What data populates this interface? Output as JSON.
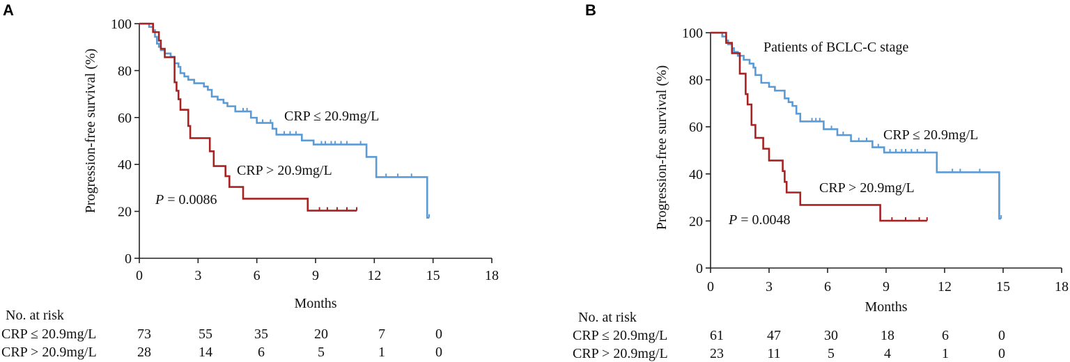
{
  "colors": {
    "low_crp": "#5b9bd5",
    "high_crp": "#a82222",
    "axis": "#222222"
  },
  "chart_data": [
    {
      "panel": "A",
      "type": "line",
      "subtype": "kaplan-meier",
      "title": "",
      "xlabel": "Months",
      "ylabel": "Progression-free survival (%)",
      "xlim": [
        0,
        18
      ],
      "ylim": [
        0,
        100
      ],
      "xticks": [
        "0",
        "3",
        "6",
        "9",
        "12",
        "15",
        "18"
      ],
      "yticks": [
        "0",
        "20",
        "40",
        "60",
        "80",
        "100"
      ],
      "pvalue_label": "P",
      "pvalue_text": " = 0.0086",
      "series": [
        {
          "name": "CRP ≤ 20.9mg/L",
          "color": "#5b9bd5",
          "steps": [
            [
              0,
              100
            ],
            [
              0.5,
              98.6
            ],
            [
              0.7,
              97.2
            ],
            [
              0.8,
              94.4
            ],
            [
              0.9,
              91.5
            ],
            [
              1.0,
              90.1
            ],
            [
              1.1,
              88.7
            ],
            [
              1.3,
              87.3
            ],
            [
              1.6,
              85.9
            ],
            [
              1.8,
              83.1
            ],
            [
              2.0,
              81.6
            ],
            [
              2.1,
              78.9
            ],
            [
              2.3,
              77.5
            ],
            [
              2.5,
              76.1
            ],
            [
              2.8,
              74.6
            ],
            [
              3.3,
              73.2
            ],
            [
              3.5,
              71.8
            ],
            [
              3.7,
              68.9
            ],
            [
              4.0,
              67.6
            ],
            [
              4.3,
              66.2
            ],
            [
              4.5,
              64.8
            ],
            [
              4.9,
              62.6
            ],
            [
              5.7,
              59.9
            ],
            [
              6.0,
              57.7
            ],
            [
              6.8,
              55.2
            ],
            [
              7.0,
              52.7
            ],
            [
              8.3,
              50.2
            ],
            [
              8.9,
              48.5
            ],
            [
              11.6,
              43.2
            ],
            [
              12.1,
              34.6
            ],
            [
              14.7,
              17.3
            ]
          ],
          "end": 14.8,
          "censored": [
            [
              5.3,
              62.6
            ],
            [
              5.5,
              62.6
            ],
            [
              6.3,
              57.7
            ],
            [
              6.7,
              57.7
            ],
            [
              7.4,
              52.7
            ],
            [
              7.7,
              52.7
            ],
            [
              8.0,
              52.7
            ],
            [
              9.3,
              48.5
            ],
            [
              9.5,
              48.5
            ],
            [
              9.8,
              48.5
            ],
            [
              10.0,
              48.5
            ],
            [
              10.3,
              48.5
            ],
            [
              10.6,
              48.5
            ],
            [
              11.3,
              48.5
            ],
            [
              12.6,
              34.6
            ],
            [
              13.2,
              34.6
            ],
            [
              13.9,
              34.6
            ],
            [
              14.8,
              17.3
            ]
          ]
        },
        {
          "name": "CRP > 20.9mg/L",
          "color": "#a82222",
          "steps": [
            [
              0,
              100
            ],
            [
              0.7,
              96.4
            ],
            [
              1.0,
              92.8
            ],
            [
              1.1,
              89.3
            ],
            [
              1.3,
              85.7
            ],
            [
              1.8,
              75.0
            ],
            [
              1.9,
              71.4
            ],
            [
              2.0,
              67.8
            ],
            [
              2.1,
              63.3
            ],
            [
              2.5,
              56.4
            ],
            [
              2.6,
              51.2
            ],
            [
              3.6,
              45.6
            ],
            [
              3.8,
              39.3
            ],
            [
              4.4,
              35.0
            ],
            [
              4.6,
              30.4
            ],
            [
              5.3,
              25.4
            ],
            [
              8.6,
              20.3
            ]
          ],
          "end": 11.1,
          "censored": [
            [
              9.2,
              20.3
            ],
            [
              9.6,
              20.3
            ],
            [
              10.1,
              20.3
            ],
            [
              10.6,
              20.3
            ],
            [
              11.1,
              20.3
            ]
          ]
        }
      ],
      "risk_table": {
        "title": "No. at risk",
        "timepoints": [
          0,
          3,
          6,
          9,
          12,
          15
        ],
        "rows": [
          {
            "label": "CRP ≤ 20.9mg/L",
            "values": [
              "73",
              "55",
              "35",
              "20",
              "7",
              "0"
            ]
          },
          {
            "label": "CRP > 20.9mg/L",
            "values": [
              "28",
              "14",
              "6",
              "5",
              "1",
              "0"
            ]
          }
        ]
      }
    },
    {
      "panel": "B",
      "type": "line",
      "subtype": "kaplan-meier",
      "title": "Patients of BCLC-C stage",
      "xlabel": "Months",
      "ylabel": "Progression-free survival (%)",
      "xlim": [
        0,
        18
      ],
      "ylim": [
        0,
        100
      ],
      "xticks": [
        "0",
        "3",
        "6",
        "9",
        "12",
        "15",
        "18"
      ],
      "yticks": [
        "0",
        "20",
        "40",
        "60",
        "80",
        "100"
      ],
      "pvalue_label": "P",
      "pvalue_text": " = 0.0048",
      "series": [
        {
          "name": "CRP ≤ 20.9mg/L",
          "color": "#5b9bd5",
          "steps": [
            [
              0,
              100
            ],
            [
              0.6,
              98.4
            ],
            [
              0.8,
              96.7
            ],
            [
              0.9,
              95.1
            ],
            [
              1.1,
              93.4
            ],
            [
              1.2,
              91.8
            ],
            [
              1.4,
              90.2
            ],
            [
              1.7,
              88.5
            ],
            [
              2.0,
              86.9
            ],
            [
              2.2,
              85.2
            ],
            [
              2.3,
              82.0
            ],
            [
              2.6,
              78.7
            ],
            [
              3.0,
              77.0
            ],
            [
              3.3,
              75.4
            ],
            [
              3.8,
              72.1
            ],
            [
              4.0,
              70.5
            ],
            [
              4.2,
              68.9
            ],
            [
              4.4,
              65.6
            ],
            [
              4.6,
              62.3
            ],
            [
              5.8,
              59.0
            ],
            [
              6.5,
              56.5
            ],
            [
              7.2,
              53.9
            ],
            [
              8.3,
              51.3
            ],
            [
              8.9,
              49.1
            ],
            [
              11.6,
              40.7
            ],
            [
              14.8,
              21.0
            ]
          ],
          "end": 14.9,
          "censored": [
            [
              5.2,
              62.3
            ],
            [
              5.4,
              62.3
            ],
            [
              5.6,
              62.3
            ],
            [
              6.2,
              59.0
            ],
            [
              6.8,
              56.5
            ],
            [
              7.6,
              53.9
            ],
            [
              8.0,
              53.9
            ],
            [
              8.6,
              51.3
            ],
            [
              9.2,
              49.1
            ],
            [
              9.5,
              49.1
            ],
            [
              9.8,
              49.1
            ],
            [
              10.0,
              49.1
            ],
            [
              10.3,
              49.1
            ],
            [
              10.6,
              49.1
            ],
            [
              11.0,
              49.1
            ],
            [
              12.4,
              40.7
            ],
            [
              12.8,
              40.7
            ],
            [
              13.8,
              40.7
            ],
            [
              14.9,
              21.0
            ]
          ]
        },
        {
          "name": "CRP > 20.9mg/L",
          "color": "#a82222",
          "steps": [
            [
              0,
              100
            ],
            [
              0.8,
              95.7
            ],
            [
              1.1,
              91.3
            ],
            [
              1.5,
              82.6
            ],
            [
              1.8,
              73.9
            ],
            [
              1.9,
              69.5
            ],
            [
              2.1,
              60.8
            ],
            [
              2.3,
              55.3
            ],
            [
              2.7,
              50.7
            ],
            [
              3.0,
              45.7
            ],
            [
              3.7,
              41.2
            ],
            [
              3.8,
              36.6
            ],
            [
              3.9,
              32.1
            ],
            [
              4.6,
              26.8
            ],
            [
              8.7,
              20.1
            ]
          ],
          "end": 11.1,
          "censored": [
            [
              9.3,
              20.1
            ],
            [
              10.0,
              20.1
            ],
            [
              10.7,
              20.1
            ],
            [
              11.1,
              20.1
            ]
          ]
        }
      ],
      "risk_table": {
        "title": "No. at risk",
        "timepoints": [
          0,
          3,
          6,
          9,
          12,
          15
        ],
        "rows": [
          {
            "label": "CRP ≤ 20.9mg/L",
            "values": [
              "61",
              "47",
              "30",
              "18",
              "6",
              "0"
            ]
          },
          {
            "label": "CRP > 20.9mg/L",
            "values": [
              "23",
              "11",
              "5",
              "4",
              "1",
              "0"
            ]
          }
        ]
      }
    }
  ]
}
